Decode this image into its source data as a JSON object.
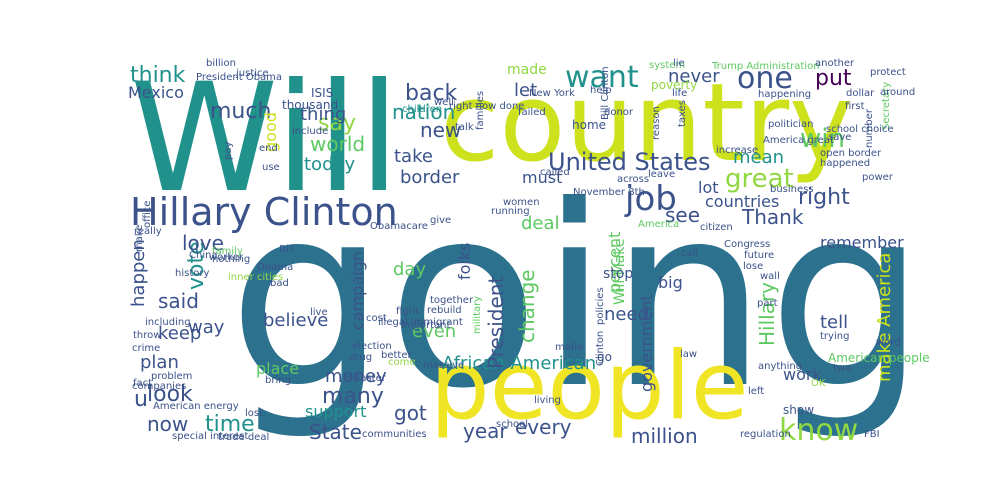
{
  "palette": {
    "yellow": "#cde11d",
    "lightyellow": "#f0e524",
    "lime": "#90d743",
    "green": "#5ec962",
    "mint": "#43bf71",
    "teal": "#21918c",
    "blue": "#2c728e",
    "indigo": "#3b528b",
    "purple": "#472d7b",
    "dark": "#440154"
  },
  "words": [
    {
      "t": "going",
      "c": "blue"
    },
    {
      "t": "Will",
      "c": "teal"
    },
    {
      "t": "country",
      "c": "yellow"
    },
    {
      "t": "people",
      "c": "lightyellow"
    },
    {
      "t": "Hillary Clinton",
      "c": "indigo"
    },
    {
      "t": "want",
      "c": "teal"
    },
    {
      "t": "one",
      "c": "indigo"
    },
    {
      "t": "put",
      "c": "dark"
    },
    {
      "t": "job",
      "c": "indigo"
    },
    {
      "t": "know",
      "c": "lime"
    },
    {
      "t": "win",
      "c": "green"
    },
    {
      "t": "great",
      "c": "lime"
    },
    {
      "t": "right",
      "c": "indigo"
    },
    {
      "t": "United States",
      "c": "indigo"
    },
    {
      "t": "think",
      "c": "teal"
    },
    {
      "t": "much",
      "c": "indigo"
    },
    {
      "t": "Mexico",
      "c": "indigo"
    },
    {
      "t": "say",
      "c": "lime"
    },
    {
      "t": "world",
      "c": "green"
    },
    {
      "t": "good",
      "c": "yellow"
    },
    {
      "t": "today",
      "c": "teal"
    },
    {
      "t": "new",
      "c": "indigo"
    },
    {
      "t": "nation",
      "c": "teal"
    },
    {
      "t": "back",
      "c": "indigo"
    },
    {
      "t": "thing",
      "c": "indigo"
    },
    {
      "t": "never",
      "c": "indigo"
    },
    {
      "t": "let",
      "c": "indigo"
    },
    {
      "t": "take",
      "c": "indigo"
    },
    {
      "t": "border",
      "c": "indigo"
    },
    {
      "t": "mean",
      "c": "teal"
    },
    {
      "t": "Thank",
      "c": "indigo"
    },
    {
      "t": "see",
      "c": "indigo"
    },
    {
      "t": "lot",
      "c": "indigo"
    },
    {
      "t": "countries",
      "c": "indigo"
    },
    {
      "t": "deal",
      "c": "green"
    },
    {
      "t": "must",
      "c": "indigo"
    },
    {
      "t": "vote",
      "c": "teal"
    },
    {
      "t": "love",
      "c": "indigo"
    },
    {
      "t": "said",
      "c": "indigo"
    },
    {
      "t": "happen",
      "c": "indigo"
    },
    {
      "t": "keep",
      "c": "indigo"
    },
    {
      "t": "way",
      "c": "indigo"
    },
    {
      "t": "plan",
      "c": "indigo"
    },
    {
      "t": "look",
      "c": "indigo"
    },
    {
      "t": "u",
      "c": "indigo"
    },
    {
      "t": "now",
      "c": "indigo"
    },
    {
      "t": "time",
      "c": "teal"
    },
    {
      "t": "State",
      "c": "indigo"
    },
    {
      "t": "got",
      "c": "indigo"
    },
    {
      "t": "year",
      "c": "indigo"
    },
    {
      "t": "every",
      "c": "indigo"
    },
    {
      "t": "million",
      "c": "indigo"
    },
    {
      "t": "many",
      "c": "indigo"
    },
    {
      "t": "money",
      "c": "indigo"
    },
    {
      "t": "support",
      "c": "teal"
    },
    {
      "t": "believe",
      "c": "indigo"
    },
    {
      "t": "African American",
      "c": "teal"
    },
    {
      "t": "President",
      "c": "indigo"
    },
    {
      "t": "even",
      "c": "green"
    },
    {
      "t": "day",
      "c": "green"
    },
    {
      "t": "change",
      "c": "green"
    },
    {
      "t": "percent",
      "c": "green"
    },
    {
      "t": "Will Make",
      "c": "green"
    },
    {
      "t": "need",
      "c": "indigo"
    },
    {
      "t": "government",
      "c": "indigo"
    },
    {
      "t": "Hillary",
      "c": "green"
    },
    {
      "t": "make America",
      "c": "yellow"
    },
    {
      "t": "tell",
      "c": "indigo"
    },
    {
      "t": "work",
      "c": "indigo"
    },
    {
      "t": "remember",
      "c": "indigo"
    },
    {
      "t": "campaign",
      "c": "indigo"
    },
    {
      "t": "place",
      "c": "green"
    },
    {
      "t": "folks",
      "c": "indigo"
    },
    {
      "t": "made",
      "c": "lime"
    },
    {
      "t": "thousand",
      "c": "indigo"
    },
    {
      "t": "ISIS",
      "c": "indigo"
    },
    {
      "t": "system",
      "c": "green"
    },
    {
      "t": "Trump Administration",
      "c": "green"
    },
    {
      "t": "poverty",
      "c": "lime"
    },
    {
      "t": "Secretary",
      "c": "green"
    },
    {
      "t": "policies",
      "c": "indigo"
    },
    {
      "t": "military",
      "c": "green"
    },
    {
      "t": "illegal immigrant",
      "c": "indigo"
    },
    {
      "t": "Obamacare",
      "c": "indigo"
    },
    {
      "t": "American people",
      "c": "green"
    },
    {
      "t": "stop",
      "c": "indigo"
    },
    {
      "t": "big",
      "c": "indigo"
    },
    {
      "t": "go",
      "c": "indigo"
    },
    {
      "t": "law",
      "c": "indigo"
    },
    {
      "t": "show",
      "c": "indigo"
    },
    {
      "t": "special interest",
      "c": "indigo"
    },
    {
      "t": "trade deal",
      "c": "indigo"
    },
    {
      "t": "communities",
      "c": "indigo"
    },
    {
      "t": "problem",
      "c": "indigo"
    },
    {
      "t": "companies",
      "c": "indigo"
    },
    {
      "t": "crime",
      "c": "indigo"
    },
    {
      "t": "including",
      "c": "indigo"
    },
    {
      "t": "history",
      "c": "indigo"
    },
    {
      "t": "nothing",
      "c": "indigo"
    },
    {
      "t": "family",
      "c": "green"
    },
    {
      "t": "really",
      "c": "indigo"
    },
    {
      "t": "include",
      "c": "indigo"
    },
    {
      "t": "children",
      "c": "teal"
    },
    {
      "t": "together",
      "c": "indigo"
    },
    {
      "t": "rebuild",
      "c": "indigo"
    },
    {
      "t": "fight",
      "c": "indigo"
    },
    {
      "t": "drug",
      "c": "indigo"
    },
    {
      "t": "election",
      "c": "indigo"
    },
    {
      "t": "cost",
      "c": "indigo"
    },
    {
      "t": "live",
      "c": "indigo"
    },
    {
      "t": "bad",
      "c": "indigo"
    },
    {
      "t": "Obama",
      "c": "indigo"
    },
    {
      "t": "America",
      "c": "green"
    },
    {
      "t": "citizen",
      "c": "indigo"
    },
    {
      "t": "Congress",
      "c": "indigo"
    },
    {
      "t": "future",
      "c": "indigo"
    },
    {
      "t": "wall",
      "c": "indigo"
    },
    {
      "t": "part",
      "c": "indigo"
    },
    {
      "t": "two",
      "c": "indigo"
    },
    {
      "t": "left",
      "c": "indigo"
    },
    {
      "t": "dollar",
      "c": "indigo"
    },
    {
      "t": "first",
      "c": "indigo"
    },
    {
      "t": "protect",
      "c": "indigo"
    },
    {
      "t": "power",
      "c": "indigo"
    },
    {
      "t": "number",
      "c": "indigo"
    },
    {
      "t": "lie",
      "c": "indigo"
    },
    {
      "t": "life",
      "c": "indigo"
    },
    {
      "t": "taxes",
      "c": "indigo"
    },
    {
      "t": "across",
      "c": "indigo"
    },
    {
      "t": "November 8th",
      "c": "indigo"
    },
    {
      "t": "running",
      "c": "indigo"
    },
    {
      "t": "women",
      "c": "indigo"
    },
    {
      "t": "justice",
      "c": "indigo"
    },
    {
      "t": "end",
      "c": "indigo"
    },
    {
      "t": "pay",
      "c": "indigo"
    },
    {
      "t": "well",
      "c": "indigo"
    },
    {
      "t": "right now done",
      "c": "indigo"
    },
    {
      "t": "failed",
      "c": "indigo"
    },
    {
      "t": "talk",
      "c": "indigo"
    },
    {
      "t": "use",
      "c": "indigo"
    },
    {
      "t": "office",
      "c": "indigo"
    },
    {
      "t": "inner cities",
      "c": "lime"
    },
    {
      "t": "China",
      "c": "indigo"
    },
    {
      "t": "worker",
      "c": "indigo"
    },
    {
      "t": "give",
      "c": "indigo"
    },
    {
      "t": "bring",
      "c": "indigo"
    },
    {
      "t": "American energy",
      "c": "indigo"
    },
    {
      "t": "lost",
      "c": "indigo"
    },
    {
      "t": "another",
      "c": "indigo"
    },
    {
      "t": "billion",
      "c": "indigo"
    },
    {
      "t": "school choice",
      "c": "indigo"
    },
    {
      "t": "open border",
      "c": "indigo"
    },
    {
      "t": "happened",
      "c": "indigo"
    },
    {
      "t": "politician",
      "c": "indigo"
    },
    {
      "t": "America great",
      "c": "indigo"
    },
    {
      "t": "happening",
      "c": "indigo"
    },
    {
      "t": "help",
      "c": "indigo"
    },
    {
      "t": "business",
      "c": "indigo"
    },
    {
      "t": "come",
      "c": "lime"
    },
    {
      "t": "better",
      "c": "indigo"
    },
    {
      "t": "important",
      "c": "indigo"
    },
    {
      "t": "increase",
      "c": "indigo"
    },
    {
      "t": "anything",
      "c": "indigo"
    },
    {
      "t": "lose",
      "c": "indigo"
    },
    {
      "t": "call",
      "c": "indigo"
    },
    {
      "t": "save",
      "c": "indigo"
    },
    {
      "t": "living",
      "c": "indigo"
    },
    {
      "t": "massive",
      "c": "indigo"
    },
    {
      "t": "regulation",
      "c": "indigo"
    },
    {
      "t": "FBI",
      "c": "indigo"
    },
    {
      "t": "school",
      "c": "indigo"
    },
    {
      "t": "disaster",
      "c": "indigo"
    },
    {
      "t": "donor",
      "c": "indigo"
    },
    {
      "t": "Bill Clinton",
      "c": "indigo"
    },
    {
      "t": "reason",
      "c": "indigo"
    },
    {
      "t": "called",
      "c": "indigo"
    },
    {
      "t": "families",
      "c": "indigo"
    },
    {
      "t": "New York",
      "c": "indigo"
    },
    {
      "t": "home",
      "c": "indigo"
    },
    {
      "t": "around",
      "c": "indigo"
    },
    {
      "t": "OK",
      "c": "lime"
    },
    {
      "t": "word",
      "c": "indigo"
    },
    {
      "t": "make",
      "c": "indigo"
    },
    {
      "t": "fact",
      "c": "indigo"
    },
    {
      "t": "throw",
      "c": "indigo"
    },
    {
      "t": "trying",
      "c": "indigo"
    },
    {
      "t": "Clinton",
      "c": "indigo"
    },
    {
      "t": "leave",
      "c": "indigo"
    },
    {
      "t": "President Obama",
      "c": "indigo"
    },
    {
      "t": "Bill",
      "c": "indigo"
    },
    {
      "t": "mafia",
      "c": "indigo"
    },
    {
      "t": "gonna",
      "c": "indigo"
    },
    {
      "t": "Iran",
      "c": "indigo"
    }
  ]
}
